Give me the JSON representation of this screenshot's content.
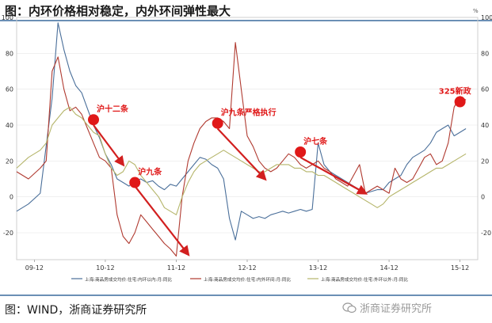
{
  "header": {
    "title": "图：内环价格相对稳定，内外环间弹性最大"
  },
  "footer": {
    "source": "图：WIND，浙商证券研究所",
    "watermark": "浙商证券研究所"
  },
  "chart_data": {
    "type": "line",
    "title": "",
    "left_axis": {
      "ticks": [
        100,
        80,
        60,
        40,
        20,
        0,
        -20
      ],
      "ylim": [
        -35,
        100
      ]
    },
    "right_axis": {
      "unit_label": "%",
      "ticks": [
        100,
        80,
        60,
        40,
        20,
        0,
        -20
      ],
      "ylim": [
        -35,
        100
      ]
    },
    "x_ticks": [
      {
        "label": "09-12",
        "x": 0
      },
      {
        "label": "10-12",
        "x": 12
      },
      {
        "label": "11-12",
        "x": 24
      },
      {
        "label": "12-12",
        "x": 36
      },
      {
        "label": "13-12",
        "x": 48
      },
      {
        "label": "14-12",
        "x": 60
      },
      {
        "label": "15-12",
        "x": 72
      }
    ],
    "xlim": [
      -3,
      75
    ],
    "series": [
      {
        "name": "上海:商品房成交均价:住宅:内环以内:月:同比",
        "color": "#4a6f9a",
        "points": [
          [
            -3,
            -8
          ],
          [
            -1,
            -4
          ],
          [
            1,
            2
          ],
          [
            3,
            55
          ],
          [
            4,
            97
          ],
          [
            5,
            82
          ],
          [
            6,
            70
          ],
          [
            7,
            62
          ],
          [
            8,
            58
          ],
          [
            9,
            49
          ],
          [
            10,
            40
          ],
          [
            11,
            33
          ],
          [
            12,
            24
          ],
          [
            13,
            18
          ],
          [
            14,
            10
          ],
          [
            15,
            8
          ],
          [
            16,
            6
          ],
          [
            17,
            9
          ],
          [
            18,
            10
          ],
          [
            19,
            8
          ],
          [
            20,
            9
          ],
          [
            21,
            6
          ],
          [
            22,
            4
          ],
          [
            23,
            7
          ],
          [
            24,
            6
          ],
          [
            25,
            10
          ],
          [
            26,
            14
          ],
          [
            27,
            18
          ],
          [
            28,
            22
          ],
          [
            29,
            21
          ],
          [
            30,
            18
          ],
          [
            31,
            16
          ],
          [
            32,
            10
          ],
          [
            33,
            -12
          ],
          [
            34,
            -24
          ],
          [
            35,
            -8
          ],
          [
            36,
            -10
          ],
          [
            37,
            -12
          ],
          [
            38,
            -11
          ],
          [
            39,
            -12
          ],
          [
            40,
            -10
          ],
          [
            41,
            -9
          ],
          [
            42,
            -8
          ],
          [
            43,
            -9
          ],
          [
            44,
            -8
          ],
          [
            45,
            -7
          ],
          [
            46,
            -8
          ],
          [
            47,
            -7
          ],
          [
            48,
            30
          ],
          [
            49,
            18
          ],
          [
            50,
            14
          ],
          [
            51,
            12
          ],
          [
            52,
            10
          ],
          [
            53,
            8
          ],
          [
            54,
            6
          ],
          [
            55,
            4
          ],
          [
            56,
            2
          ],
          [
            57,
            3
          ],
          [
            58,
            4
          ],
          [
            59,
            4
          ],
          [
            60,
            8
          ],
          [
            61,
            10
          ],
          [
            62,
            12
          ],
          [
            63,
            18
          ],
          [
            64,
            22
          ],
          [
            65,
            24
          ],
          [
            66,
            26
          ],
          [
            67,
            30
          ],
          [
            68,
            36
          ],
          [
            69,
            38
          ],
          [
            70,
            40
          ],
          [
            71,
            34
          ],
          [
            72,
            36
          ],
          [
            73,
            38
          ]
        ]
      },
      {
        "name": "上海:商品房成交均价:住宅:内外环间:月:同比",
        "color": "#b03a30",
        "points": [
          [
            -3,
            14
          ],
          [
            -1,
            10
          ],
          [
            1,
            16
          ],
          [
            2,
            20
          ],
          [
            3,
            70
          ],
          [
            4,
            78
          ],
          [
            5,
            60
          ],
          [
            6,
            48
          ],
          [
            7,
            50
          ],
          [
            8,
            46
          ],
          [
            9,
            38
          ],
          [
            10,
            30
          ],
          [
            11,
            22
          ],
          [
            12,
            20
          ],
          [
            13,
            16
          ],
          [
            14,
            -10
          ],
          [
            15,
            -22
          ],
          [
            16,
            -26
          ],
          [
            17,
            -20
          ],
          [
            18,
            -10
          ],
          [
            19,
            -14
          ],
          [
            20,
            -18
          ],
          [
            21,
            -22
          ],
          [
            22,
            -26
          ],
          [
            23,
            -29
          ],
          [
            24,
            -33
          ],
          [
            25,
            0
          ],
          [
            26,
            20
          ],
          [
            27,
            30
          ],
          [
            28,
            38
          ],
          [
            29,
            42
          ],
          [
            30,
            44
          ],
          [
            31,
            44
          ],
          [
            32,
            42
          ],
          [
            33,
            38
          ],
          [
            34,
            86
          ],
          [
            35,
            60
          ],
          [
            36,
            34
          ],
          [
            37,
            28
          ],
          [
            38,
            20
          ],
          [
            39,
            16
          ],
          [
            40,
            14
          ],
          [
            41,
            16
          ],
          [
            42,
            20
          ],
          [
            43,
            24
          ],
          [
            44,
            22
          ],
          [
            45,
            18
          ],
          [
            46,
            16
          ],
          [
            47,
            18
          ],
          [
            48,
            20
          ],
          [
            49,
            16
          ],
          [
            50,
            14
          ],
          [
            51,
            10
          ],
          [
            52,
            8
          ],
          [
            53,
            6
          ],
          [
            54,
            12
          ],
          [
            55,
            18
          ],
          [
            56,
            2
          ],
          [
            57,
            4
          ],
          [
            58,
            6
          ],
          [
            59,
            4
          ],
          [
            60,
            2
          ],
          [
            61,
            16
          ],
          [
            62,
            10
          ],
          [
            63,
            8
          ],
          [
            64,
            10
          ],
          [
            65,
            16
          ],
          [
            66,
            22
          ],
          [
            67,
            24
          ],
          [
            68,
            18
          ],
          [
            69,
            20
          ],
          [
            70,
            30
          ],
          [
            71,
            50
          ],
          [
            72,
            56
          ],
          [
            73,
            54
          ]
        ]
      },
      {
        "name": "上海:商品房成交均价:住宅:外环以外:月:同比",
        "color": "#b5b56a",
        "points": [
          [
            -3,
            16
          ],
          [
            -1,
            22
          ],
          [
            1,
            26
          ],
          [
            2,
            30
          ],
          [
            3,
            40
          ],
          [
            4,
            44
          ],
          [
            5,
            48
          ],
          [
            6,
            50
          ],
          [
            7,
            46
          ],
          [
            8,
            44
          ],
          [
            9,
            40
          ],
          [
            10,
            36
          ],
          [
            11,
            34
          ],
          [
            12,
            24
          ],
          [
            13,
            16
          ],
          [
            14,
            12
          ],
          [
            15,
            14
          ],
          [
            16,
            20
          ],
          [
            17,
            18
          ],
          [
            18,
            12
          ],
          [
            19,
            8
          ],
          [
            20,
            4
          ],
          [
            21,
            0
          ],
          [
            22,
            -6
          ],
          [
            23,
            -8
          ],
          [
            24,
            -10
          ],
          [
            25,
            0
          ],
          [
            26,
            8
          ],
          [
            27,
            14
          ],
          [
            28,
            18
          ],
          [
            29,
            20
          ],
          [
            30,
            22
          ],
          [
            31,
            24
          ],
          [
            32,
            26
          ],
          [
            33,
            24
          ],
          [
            34,
            22
          ],
          [
            35,
            20
          ],
          [
            36,
            18
          ],
          [
            37,
            16
          ],
          [
            38,
            14
          ],
          [
            39,
            14
          ],
          [
            40,
            16
          ],
          [
            41,
            18
          ],
          [
            42,
            18
          ],
          [
            43,
            18
          ],
          [
            44,
            16
          ],
          [
            45,
            16
          ],
          [
            46,
            14
          ],
          [
            47,
            14
          ],
          [
            48,
            12
          ],
          [
            49,
            12
          ],
          [
            50,
            10
          ],
          [
            51,
            8
          ],
          [
            52,
            6
          ],
          [
            53,
            4
          ],
          [
            54,
            2
          ],
          [
            55,
            0
          ],
          [
            56,
            -2
          ],
          [
            57,
            -4
          ],
          [
            58,
            -6
          ],
          [
            59,
            -4
          ],
          [
            60,
            0
          ],
          [
            61,
            2
          ],
          [
            62,
            4
          ],
          [
            63,
            6
          ],
          [
            64,
            8
          ],
          [
            65,
            10
          ],
          [
            66,
            12
          ],
          [
            67,
            14
          ],
          [
            68,
            16
          ],
          [
            69,
            16
          ],
          [
            70,
            18
          ],
          [
            71,
            20
          ],
          [
            72,
            22
          ],
          [
            73,
            24
          ]
        ]
      }
    ],
    "annotations": [
      {
        "label": "沪十二条",
        "x": 10,
        "y": 43
      },
      {
        "label": "沪九条",
        "x": 17,
        "y": 8
      },
      {
        "label": "沪九条严格执行",
        "x": 31,
        "y": 41
      },
      {
        "label": "沪七条",
        "x": 45,
        "y": 25
      },
      {
        "label": "325新政",
        "x": 72,
        "y": 53
      }
    ],
    "arrows": [
      {
        "from": [
          10,
          40
        ],
        "to": [
          15,
          18
        ]
      },
      {
        "from": [
          17,
          6
        ],
        "to": [
          26,
          -32
        ]
      },
      {
        "from": [
          31,
          38
        ],
        "to": [
          39,
          10
        ]
      },
      {
        "from": [
          45,
          22
        ],
        "to": [
          56,
          2
        ]
      }
    ],
    "colors": {
      "marker": "#e01818",
      "arrow": "#d21f1f",
      "label": "#e01818",
      "grid": "#e6e6e6"
    }
  }
}
